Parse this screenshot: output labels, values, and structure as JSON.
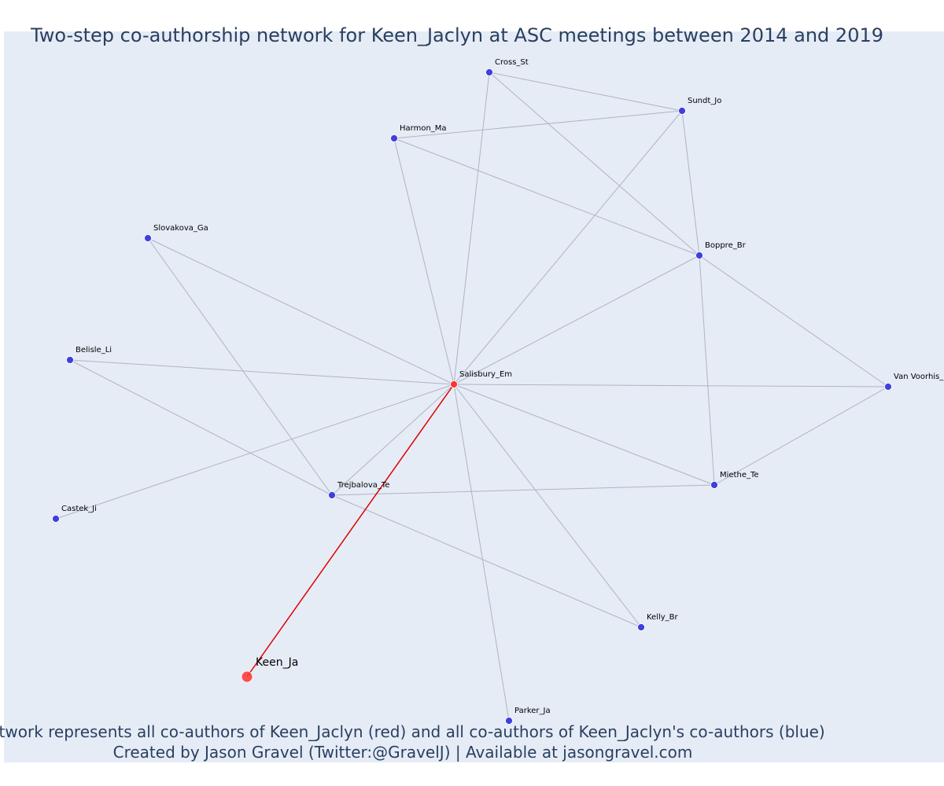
{
  "title": "Two-step co-authorship network for Keen_Jaclyn at ASC meetings between 2014 and 2019",
  "caption_line1": "Network represents all co-authors of Keen_Jaclyn (red) and all co-authors of Keen_Jaclyn's co-authors (blue)",
  "caption_line2": "Created by Jason Gravel (Twitter:@GravelJ) | Available at jasongravel.com",
  "colors": {
    "background": "#e5ecf6",
    "edge": "#b2b2c3",
    "focal_edge": "#e00000",
    "coauthor_node": "#ff3333",
    "second_step_node": "#3f3fe0"
  },
  "nodes": [
    {
      "id": "Keen_Ja",
      "label": "Keen_Ja",
      "group": "focal"
    },
    {
      "id": "Salisbury_Em",
      "label": "Salisbury_Em",
      "group": "coauthor"
    },
    {
      "id": "Cross_St",
      "label": "Cross_St",
      "group": "second_step"
    },
    {
      "id": "Sundt_Jo",
      "label": "Sundt_Jo",
      "group": "second_step"
    },
    {
      "id": "Harmon_Ma",
      "label": "Harmon_Ma",
      "group": "second_step"
    },
    {
      "id": "Slovakova_Ga",
      "label": "Slovakova_Ga",
      "group": "second_step"
    },
    {
      "id": "Boppre_Br",
      "label": "Boppre_Br",
      "group": "second_step"
    },
    {
      "id": "Belisle_Li",
      "label": "Belisle_Li",
      "group": "second_step"
    },
    {
      "id": "Van_Voorhis",
      "label": "Van Voorhis_",
      "group": "second_step"
    },
    {
      "id": "Miethe_Te",
      "label": "Miethe_Te",
      "group": "second_step"
    },
    {
      "id": "Trejbalova_Te",
      "label": "Trejbalova_Te",
      "group": "second_step"
    },
    {
      "id": "Castek_Ji",
      "label": "Castek_Ji",
      "group": "second_step"
    },
    {
      "id": "Kelly_Br",
      "label": "Kelly_Br",
      "group": "second_step"
    },
    {
      "id": "Parker_Ja",
      "label": "Parker_Ja",
      "group": "second_step"
    }
  ],
  "edges": [
    [
      "Keen_Ja",
      "Salisbury_Em"
    ],
    [
      "Salisbury_Em",
      "Cross_St"
    ],
    [
      "Salisbury_Em",
      "Sundt_Jo"
    ],
    [
      "Salisbury_Em",
      "Harmon_Ma"
    ],
    [
      "Salisbury_Em",
      "Slovakova_Ga"
    ],
    [
      "Salisbury_Em",
      "Boppre_Br"
    ],
    [
      "Salisbury_Em",
      "Belisle_Li"
    ],
    [
      "Salisbury_Em",
      "Van_Voorhis"
    ],
    [
      "Salisbury_Em",
      "Miethe_Te"
    ],
    [
      "Salisbury_Em",
      "Trejbalova_Te"
    ],
    [
      "Salisbury_Em",
      "Castek_Ji"
    ],
    [
      "Salisbury_Em",
      "Kelly_Br"
    ],
    [
      "Salisbury_Em",
      "Parker_Ja"
    ],
    [
      "Cross_St",
      "Sundt_Jo"
    ],
    [
      "Cross_St",
      "Boppre_Br"
    ],
    [
      "Harmon_Ma",
      "Sundt_Jo"
    ],
    [
      "Harmon_Ma",
      "Boppre_Br"
    ],
    [
      "Sundt_Jo",
      "Boppre_Br"
    ],
    [
      "Boppre_Br",
      "Miethe_Te"
    ],
    [
      "Boppre_Br",
      "Van_Voorhis"
    ],
    [
      "Van_Voorhis",
      "Miethe_Te"
    ],
    [
      "Slovakova_Ga",
      "Trejbalova_Te"
    ],
    [
      "Belisle_Li",
      "Trejbalova_Te"
    ],
    [
      "Trejbalova_Te",
      "Miethe_Te"
    ],
    [
      "Trejbalova_Te",
      "Kelly_Br"
    ]
  ]
}
